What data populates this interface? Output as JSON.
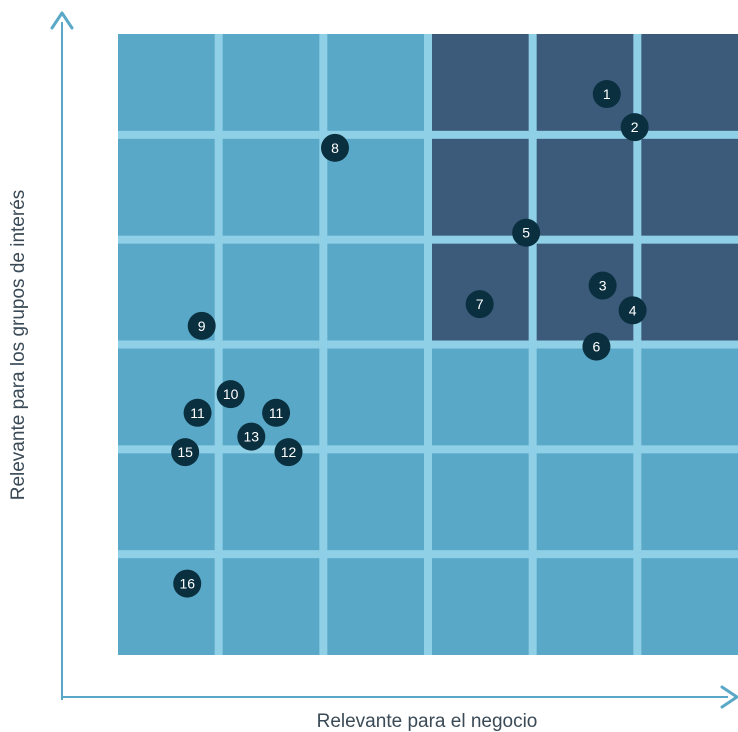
{
  "chart_data": {
    "type": "scatter",
    "title": "",
    "xlabel": "Relevante para el negocio",
    "ylabel": "Relevante para los grupos de interés",
    "xlim": [
      0,
      6
    ],
    "ylim": [
      0,
      6
    ],
    "grid": true,
    "grid_divisions": 6,
    "highlight_region": {
      "x": [
        3,
        6
      ],
      "y": [
        3,
        6
      ]
    },
    "colors": {
      "cell": "#5aa8c8",
      "highlight_cell": "#3c5a7a",
      "grid_line": "#8fd0e6",
      "axis": "#5aa8c8",
      "marker": "#0a2f3f",
      "marker_text": "#ffffff",
      "axis_text": "#3a4a56"
    },
    "points": [
      {
        "label": "1",
        "x": 4.73,
        "y": 5.42
      },
      {
        "label": "2",
        "x": 5.0,
        "y": 5.1
      },
      {
        "label": "8",
        "x": 2.1,
        "y": 4.9
      },
      {
        "label": "5",
        "x": 3.95,
        "y": 4.08
      },
      {
        "label": "3",
        "x": 4.69,
        "y": 3.57
      },
      {
        "label": "4",
        "x": 4.98,
        "y": 3.33
      },
      {
        "label": "7",
        "x": 3.5,
        "y": 3.39
      },
      {
        "label": "6",
        "x": 4.63,
        "y": 2.98
      },
      {
        "label": "9",
        "x": 0.81,
        "y": 3.18
      },
      {
        "label": "10",
        "x": 1.09,
        "y": 2.52
      },
      {
        "label": "11",
        "x": 0.77,
        "y": 2.34
      },
      {
        "label": "11",
        "x": 1.53,
        "y": 2.34
      },
      {
        "label": "13",
        "x": 1.29,
        "y": 2.11
      },
      {
        "label": "15",
        "x": 0.65,
        "y": 1.96
      },
      {
        "label": "12",
        "x": 1.65,
        "y": 1.96
      },
      {
        "label": "16",
        "x": 0.67,
        "y": 0.69
      }
    ]
  }
}
